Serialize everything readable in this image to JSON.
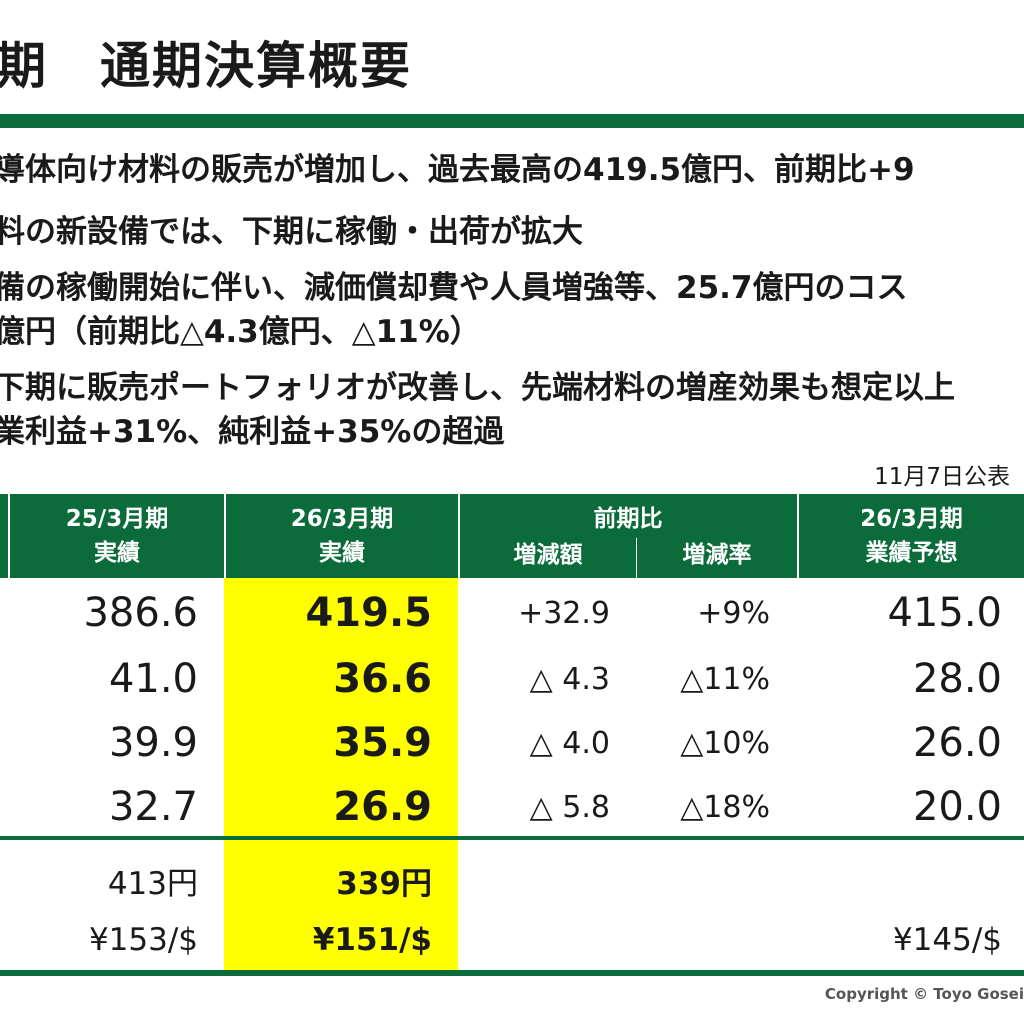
{
  "title": "期　通期決算概要",
  "bullets": [
    "導体向け材料の販売が増加し、過去最高の419.5億円、前期比+9",
    "料の新設備では、下期に稼働・出荷が拡大",
    "備の稼働開始に伴い、減価償却費や人員増強等、25.7億円のコス",
    "億円（前期比△4.3億円、△11%）",
    "下期に販売ポートフォリオが改善し、先端材料の増産効果も想定以上",
    "業利益+31%、純利益+35%の超過"
  ],
  "publication_date": "11月7日公表",
  "table": {
    "headers": {
      "col1": {
        "line1": "25/3月期",
        "line2": "実績"
      },
      "col2": {
        "line1": "26/3月期",
        "line2": "実績"
      },
      "col3": {
        "line1": "前期比",
        "sub_a": "増減額",
        "sub_b": "増減率"
      },
      "col4": {
        "line1": "26/3月期",
        "line2": "業績予想"
      }
    },
    "rows": [
      {
        "prev": "386.6",
        "curr": "419.5",
        "diff": "+32.9",
        "rate": "+9%",
        "forecast": "415.0"
      },
      {
        "prev": "41.0",
        "curr": "36.6",
        "diff": "△ 4.3",
        "rate": "△11%",
        "forecast": "28.0"
      },
      {
        "prev": "39.9",
        "curr": "35.9",
        "diff": "△ 4.0",
        "rate": "△10%",
        "forecast": "26.0"
      },
      {
        "prev": "32.7",
        "curr": "26.9",
        "diff": "△ 5.8",
        "rate": "△18%",
        "forecast": "20.0"
      }
    ],
    "extra_rows": [
      {
        "prev": "413円",
        "curr": "339円",
        "forecast": ""
      },
      {
        "prev": "¥153/$",
        "curr": "¥151/$",
        "forecast": "¥145/$"
      }
    ]
  },
  "copyright": "Copyright © Toyo Gosei",
  "colors": {
    "accent_green": "#0b6b3a",
    "highlight_yellow": "#ffff00"
  }
}
